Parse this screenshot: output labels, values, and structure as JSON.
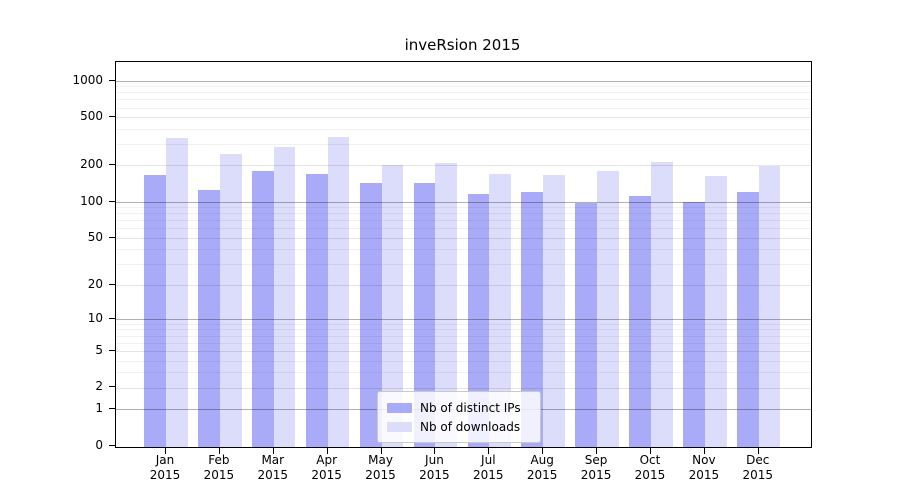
{
  "chart_data": {
    "type": "bar",
    "title": "inveRsion 2015",
    "xlabel": "",
    "ylabel": "",
    "yscale": "log1p",
    "ylim": [
      0,
      1400
    ],
    "grid": "both",
    "yticks": [
      1000,
      500,
      200,
      100,
      50,
      20,
      10,
      5,
      2,
      1,
      0
    ],
    "categories": [
      "Jan",
      "Feb",
      "Mar",
      "Apr",
      "May",
      "Jun",
      "Jul",
      "Aug",
      "Sep",
      "Oct",
      "Nov",
      "Dec"
    ],
    "year_label": "2015",
    "legend_position": "inside-bottom-center",
    "series": [
      {
        "name": "Nb of distinct IPs",
        "color": "#a9aaf8",
        "values": [
          165,
          126,
          180,
          170,
          142,
          144,
          115,
          120,
          98,
          111,
          99,
          120
        ]
      },
      {
        "name": "Nb of downloads",
        "color": "#dcdcfb",
        "values": [
          335,
          248,
          281,
          340,
          201,
          210,
          170,
          165,
          180,
          213,
          162,
          198
        ]
      }
    ]
  }
}
